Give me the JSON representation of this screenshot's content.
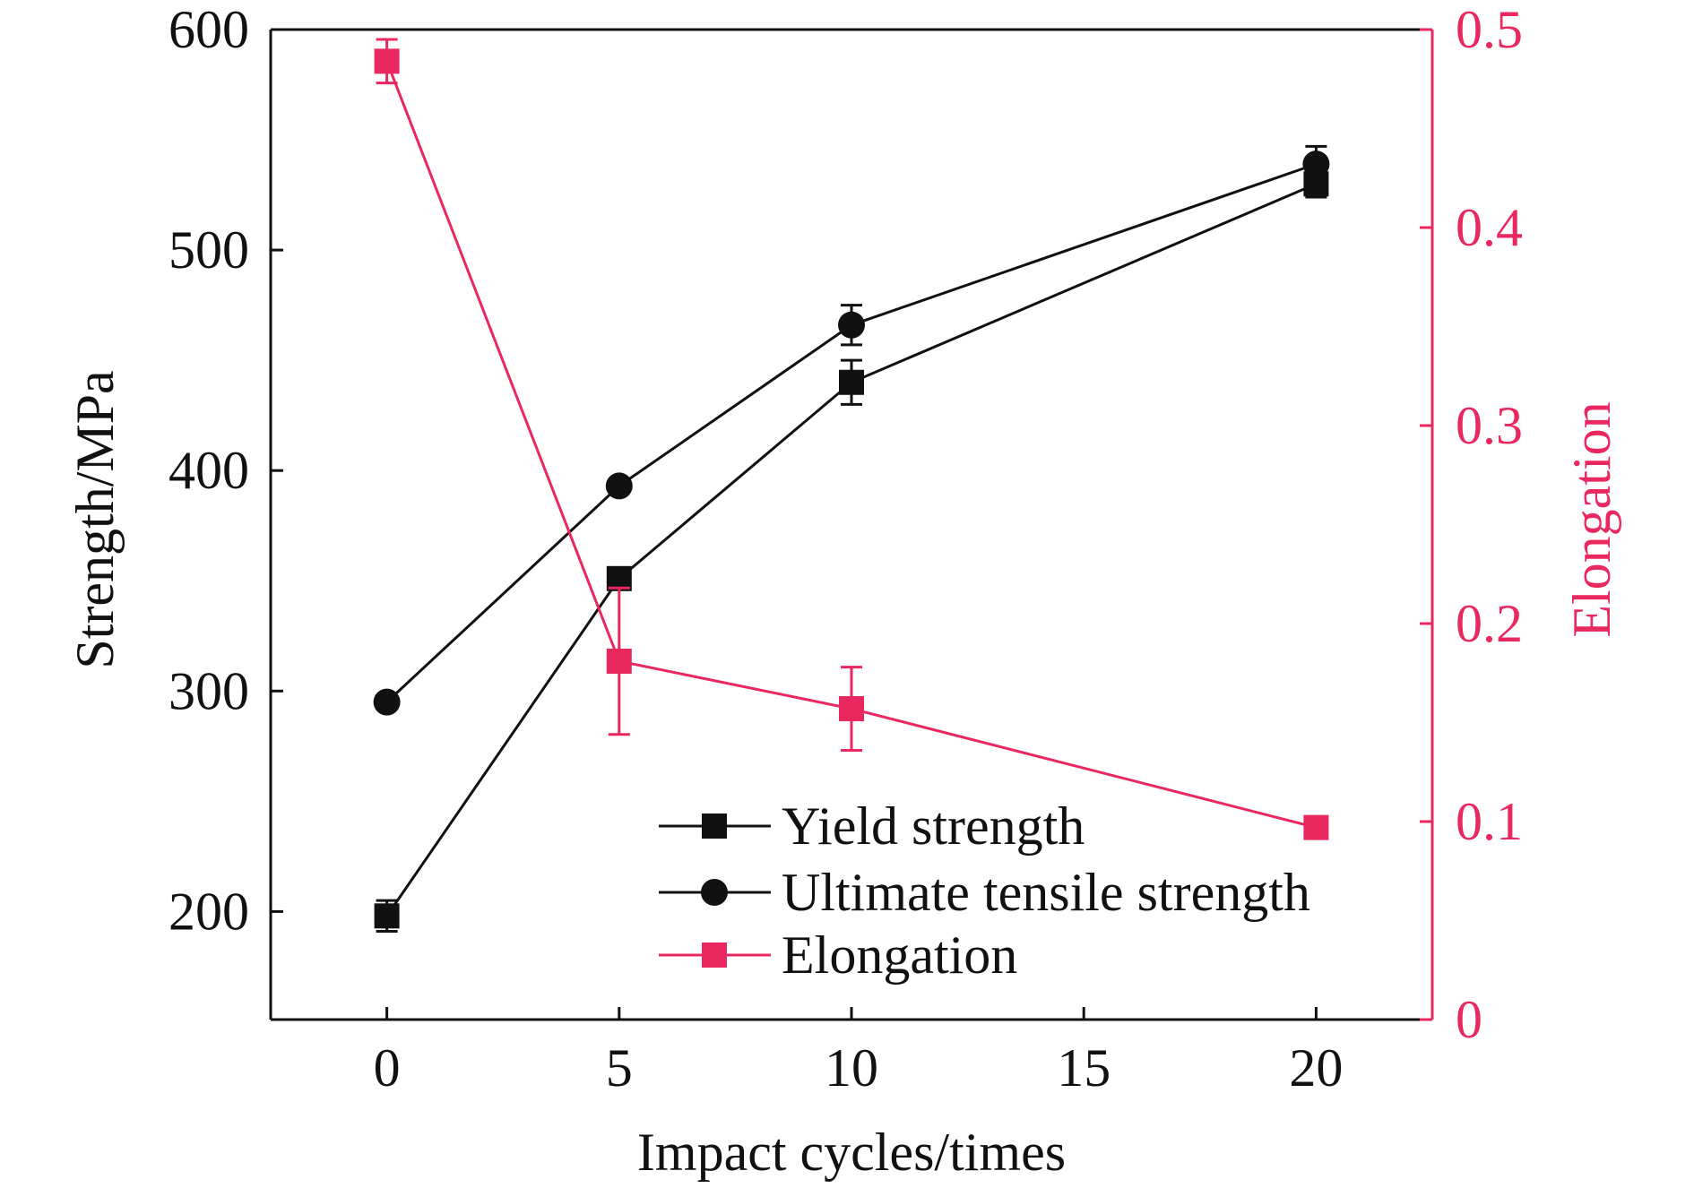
{
  "chart_data": {
    "type": "line",
    "title": "",
    "xlabel": "Impact cycles/times",
    "ylabel": "Strength/MPa",
    "y2label": "Elongation",
    "x": [
      0,
      5,
      10,
      20
    ],
    "xlim": [
      -2.5,
      22.5
    ],
    "xticks": [
      "0",
      "5",
      "10",
      "15",
      "20"
    ],
    "xtick_values": [
      0,
      5,
      10,
      15,
      20
    ],
    "ylim": [
      151,
      600
    ],
    "yticks": [
      "200",
      "300",
      "400",
      "500",
      "600"
    ],
    "ytick_values": [
      200,
      300,
      400,
      500,
      600
    ],
    "y2lim": [
      0,
      0.5
    ],
    "y2ticks": [
      "0",
      "0.1",
      "0.2",
      "0.3",
      "0.4",
      "0.5"
    ],
    "y2tick_values": [
      0,
      0.1,
      0.2,
      0.3,
      0.4,
      0.5
    ],
    "grid": false,
    "legend_position": "bottom-right",
    "series": [
      {
        "name": "Yield strength",
        "axis": "left",
        "marker": "square",
        "color": "#111111",
        "values": [
          198,
          351,
          440,
          530
        ],
        "errors": [
          7,
          3,
          10,
          6
        ]
      },
      {
        "name": "Ultimate tensile strength",
        "axis": "left",
        "marker": "circle",
        "color": "#111111",
        "values": [
          295,
          393,
          466,
          539
        ],
        "errors": [
          3,
          3,
          9,
          8
        ]
      },
      {
        "name": "Elongation",
        "axis": "right",
        "marker": "square",
        "color": "#ea2860",
        "values": [
          0.484,
          0.181,
          0.157,
          0.097
        ],
        "errors": [
          0.011,
          0.037,
          0.021,
          0.003
        ]
      }
    ]
  }
}
